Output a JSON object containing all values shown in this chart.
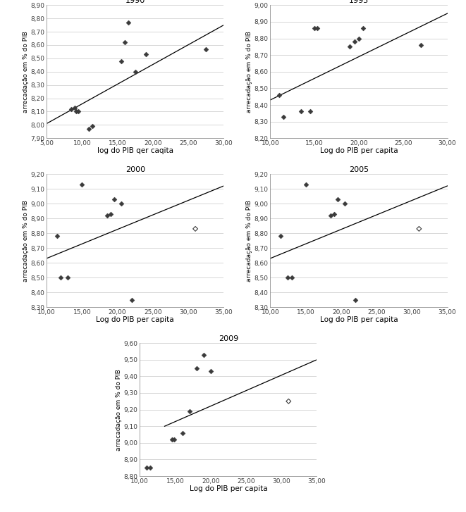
{
  "plots": [
    {
      "title": "1990",
      "xlabel": "log do PIB qer caqita",
      "ylabel": "arrecadação em % do PIB",
      "xlim": [
        5.0,
        30.0
      ],
      "ylim": [
        7.9,
        8.9
      ],
      "yticks": [
        7.9,
        8.0,
        8.1,
        8.2,
        8.3,
        8.4,
        8.5,
        8.6,
        8.7,
        8.8,
        8.9
      ],
      "xticks": [
        5.0,
        10.0,
        15.0,
        20.0,
        25.0,
        30.0
      ],
      "xtick_labels": [
        "5,00",
        "10,00",
        "15,00",
        "20,00",
        "25,00",
        "30,00"
      ],
      "ytick_labels": [
        "7,90",
        "8,00",
        "8,10",
        "8,20",
        "8,30",
        "8,40",
        "8,50",
        "8,60",
        "8,70",
        "8,80",
        "8,90"
      ],
      "scatter_x": [
        8.5,
        9.0,
        9.2,
        9.5,
        11.0,
        11.5,
        15.5,
        16.0,
        16.5,
        17.5,
        19.0,
        27.5
      ],
      "scatter_y": [
        8.12,
        8.13,
        8.1,
        8.1,
        7.97,
        7.99,
        8.48,
        8.62,
        8.77,
        8.4,
        8.53,
        8.57
      ],
      "scatter_open": [],
      "trendline_x": [
        5.0,
        30.0
      ],
      "trendline_y": [
        8.01,
        8.75
      ]
    },
    {
      "title": "1995",
      "xlabel": "Log do PIB per capita",
      "ylabel": "arrecadação em % do PIB",
      "xlim": [
        10.0,
        30.0
      ],
      "ylim": [
        8.2,
        9.0
      ],
      "yticks": [
        8.2,
        8.3,
        8.4,
        8.5,
        8.6,
        8.7,
        8.8,
        8.9,
        9.0
      ],
      "xticks": [
        10.0,
        15.0,
        20.0,
        25.0,
        30.0
      ],
      "xtick_labels": [
        "10,00",
        "15,00",
        "20,00",
        "25,00",
        "30,00"
      ],
      "ytick_labels": [
        "8,20",
        "8,30",
        "8,40",
        "8,50",
        "8,60",
        "8,70",
        "8,80",
        "8,90",
        "9,00"
      ],
      "scatter_x": [
        11.0,
        11.5,
        13.5,
        14.5,
        15.0,
        15.3,
        19.0,
        19.5,
        20.0,
        20.5,
        27.0
      ],
      "scatter_y": [
        8.46,
        8.33,
        8.36,
        8.36,
        8.86,
        8.86,
        8.75,
        8.78,
        8.8,
        8.86,
        8.76
      ],
      "scatter_open": [],
      "trendline_x": [
        10.0,
        30.0
      ],
      "trendline_y": [
        8.43,
        8.95
      ]
    },
    {
      "title": "2000",
      "xlabel": "Log do PIB per capita",
      "ylabel": "arrecadação em % do PIB",
      "xlim": [
        10.0,
        35.0
      ],
      "ylim": [
        8.3,
        9.2
      ],
      "yticks": [
        8.3,
        8.4,
        8.5,
        8.6,
        8.7,
        8.8,
        8.9,
        9.0,
        9.1,
        9.2
      ],
      "xticks": [
        10.0,
        15.0,
        20.0,
        25.0,
        30.0,
        35.0
      ],
      "xtick_labels": [
        "10,00",
        "15,00",
        "20,00",
        "25,00",
        "30,00",
        "35,00"
      ],
      "ytick_labels": [
        "8,30",
        "8,40",
        "8,50",
        "8,60",
        "8,70",
        "8,80",
        "8,90",
        "9,00",
        "9,10",
        "9,20"
      ],
      "scatter_x": [
        11.5,
        12.0,
        13.0,
        15.0,
        18.5,
        19.0,
        19.5,
        20.5,
        22.0
      ],
      "scatter_y": [
        8.78,
        8.5,
        8.5,
        9.13,
        8.92,
        8.93,
        9.03,
        9.0,
        8.35
      ],
      "scatter_open": [
        31.0,
        8.83
      ],
      "trendline_x": [
        10.0,
        35.0
      ],
      "trendline_y": [
        8.63,
        9.12
      ]
    },
    {
      "title": "2005",
      "xlabel": "Log do PIB per capita",
      "ylabel": "arrecadação em % do PIB",
      "xlim": [
        10.0,
        35.0
      ],
      "ylim": [
        8.3,
        9.2
      ],
      "yticks": [
        8.3,
        8.4,
        8.5,
        8.6,
        8.7,
        8.8,
        8.9,
        9.0,
        9.1,
        9.2
      ],
      "xticks": [
        10.0,
        15.0,
        20.0,
        25.0,
        30.0,
        35.0
      ],
      "xtick_labels": [
        "10,00",
        "15,00",
        "20,00",
        "25,00",
        "30,00",
        "35,00"
      ],
      "ytick_labels": [
        "8,30",
        "8,40",
        "8,50",
        "8,60",
        "8,70",
        "8,80",
        "8,90",
        "9,00",
        "9,10",
        "9,20"
      ],
      "scatter_x": [
        11.5,
        12.5,
        13.0,
        15.0,
        18.5,
        19.0,
        19.5,
        20.5,
        22.0
      ],
      "scatter_y": [
        8.78,
        8.5,
        8.5,
        9.13,
        8.92,
        8.93,
        9.03,
        9.0,
        8.35
      ],
      "scatter_open": [
        31.0,
        8.83
      ],
      "trendline_x": [
        10.0,
        35.0
      ],
      "trendline_y": [
        8.63,
        9.12
      ]
    },
    {
      "title": "2009",
      "xlabel": "Log do PIB per capita",
      "ylabel": "arrecadação em % do PIB",
      "xlim": [
        10.0,
        35.0
      ],
      "ylim": [
        8.8,
        9.6
      ],
      "yticks": [
        8.8,
        8.9,
        9.0,
        9.1,
        9.2,
        9.3,
        9.4,
        9.5,
        9.6
      ],
      "xticks": [
        10.0,
        15.0,
        20.0,
        25.0,
        30.0,
        35.0
      ],
      "xtick_labels": [
        "10,00",
        "15,00",
        "20,00",
        "25,00",
        "30,00",
        "35,00"
      ],
      "ytick_labels": [
        "8,80",
        "8,90",
        "9,00",
        "9,10",
        "9,20",
        "9,30",
        "9,40",
        "9,50",
        "9,60"
      ],
      "scatter_x": [
        11.0,
        11.5,
        14.5,
        14.8,
        16.0,
        17.0,
        18.0,
        19.0,
        20.0
      ],
      "scatter_y": [
        8.85,
        8.85,
        9.02,
        9.02,
        9.06,
        9.19,
        9.45,
        9.53,
        9.43
      ],
      "scatter_open": [
        31.0,
        9.25
      ],
      "trendline_x": [
        13.5,
        35.0
      ],
      "trendline_y": [
        9.1,
        9.5
      ]
    }
  ],
  "scatter_color": "#3a3a3a",
  "line_color": "#000000",
  "tick_fontsize": 6.5,
  "title_fontsize": 8,
  "ylabel_fontsize": 6.5,
  "xlabel_fontsize": 7.5,
  "grid_color": "#c8c8c8",
  "grid_linewidth": 0.5,
  "scatter_size": 12,
  "line_width": 0.9
}
